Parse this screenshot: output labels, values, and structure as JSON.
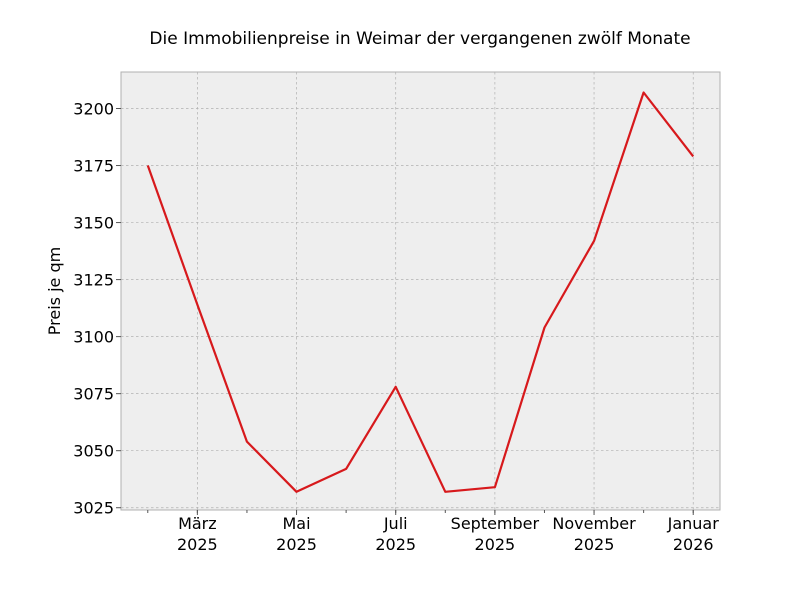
{
  "chart_data": {
    "type": "line",
    "title": "Die Immobilienpreise in Weimar der vergangenen zwölf Monate",
    "xlabel": "",
    "ylabel": "Preis je qm",
    "x": [
      "2025-02",
      "2025-03",
      "2025-04",
      "2025-05",
      "2025-06",
      "2025-07",
      "2025-08",
      "2025-09",
      "2025-10",
      "2025-11",
      "2025-12",
      "2026-01"
    ],
    "series": [
      {
        "values": [
          3175,
          3114,
          3054,
          3032,
          3042,
          3078,
          3032,
          3034,
          3104,
          3142,
          3207,
          3179
        ],
        "color": "#d7191c"
      }
    ],
    "x_ticks": [
      {
        "x": "2025-03",
        "month": "März",
        "year": "2025"
      },
      {
        "x": "2025-05",
        "month": "Mai",
        "year": "2025"
      },
      {
        "x": "2025-07",
        "month": "Juli",
        "year": "2025"
      },
      {
        "x": "2025-09",
        "month": "September",
        "year": "2025"
      },
      {
        "x": "2025-11",
        "month": "November",
        "year": "2025"
      },
      {
        "x": "2026-01",
        "month": "Januar",
        "year": "2026"
      }
    ],
    "y_ticks": [
      "3025",
      "3050",
      "3075",
      "3100",
      "3125",
      "3150",
      "3175",
      "3200"
    ],
    "ylim": [
      3024,
      3216
    ],
    "grid": true,
    "background_color": "#eeeeee",
    "grid_color": "#b0b0b0"
  }
}
